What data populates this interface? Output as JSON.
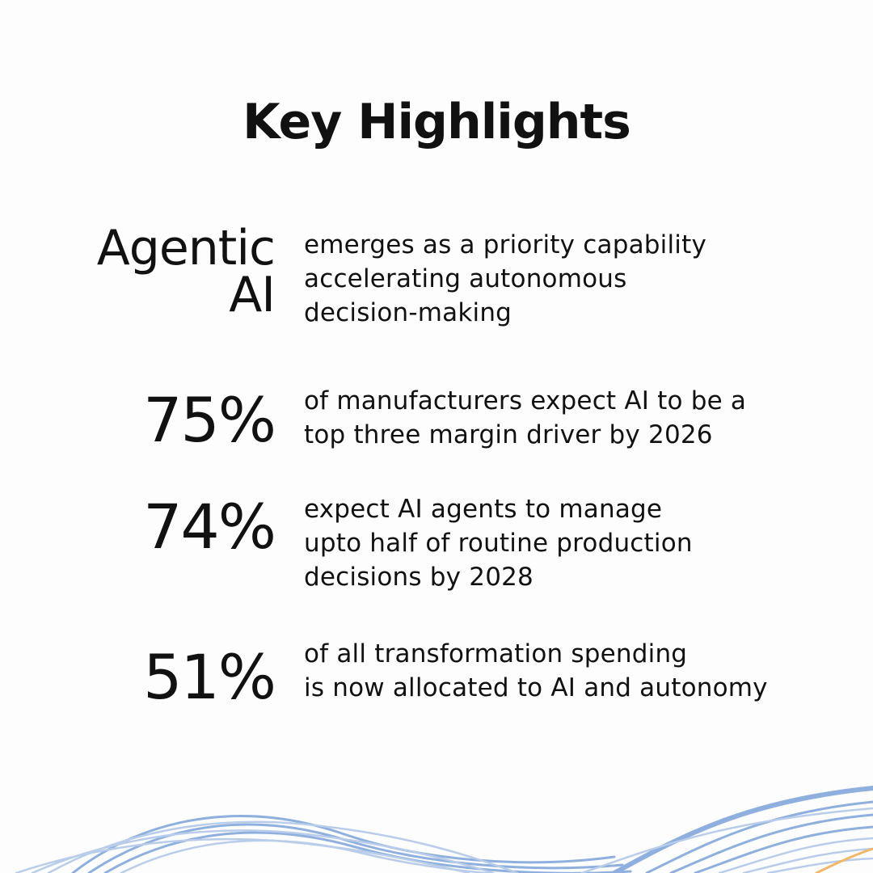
{
  "title": "Key Highlights",
  "highlights": [
    {
      "stat_line1": "Agentic",
      "stat_line2": "AI",
      "desc_lines": [
        "emerges as a priority capability",
        "accelerating autonomous",
        "decision-making"
      ]
    },
    {
      "stat": "75%",
      "desc_lines": [
        "of manufacturers expect AI to be a",
        "top three margin driver by 2026"
      ]
    },
    {
      "stat": "74%",
      "desc_lines": [
        "expect AI agents to manage",
        "upto half of routine production",
        "decisions by 2028"
      ]
    },
    {
      "stat": "51%",
      "desc_lines": [
        "of all transformation spending",
        "is now allocated to AI and autonomy"
      ]
    }
  ],
  "colors": {
    "text": "#111111",
    "background": "#fdfdfd",
    "wave_blue": "#8fb0de",
    "wave_light": "#b9cdea",
    "wave_orange": "#f2b86a"
  },
  "icons": [
    "wave-decoration"
  ]
}
